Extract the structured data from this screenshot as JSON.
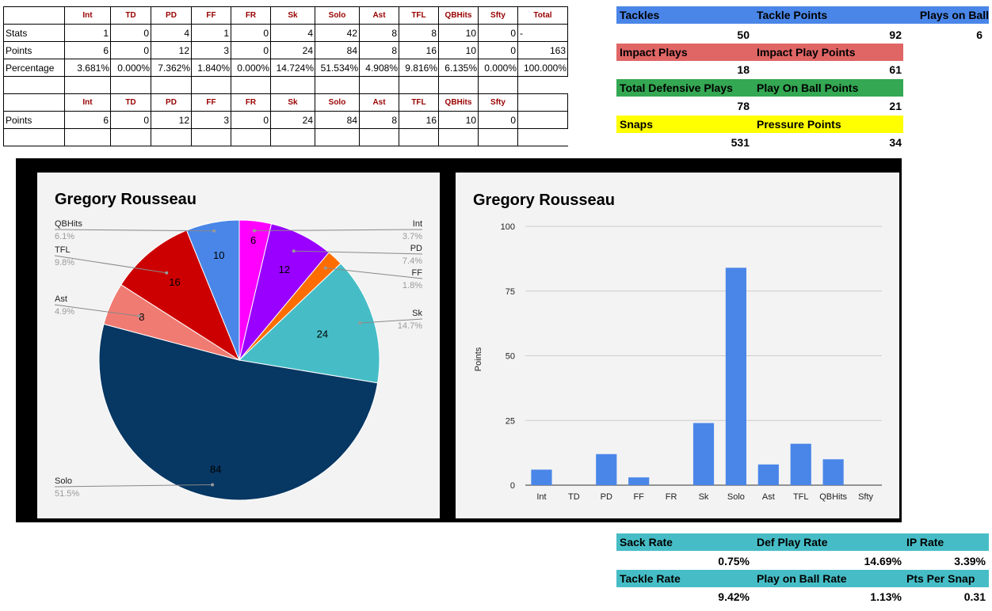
{
  "stats_table": {
    "headers": [
      "",
      "Int",
      "TD",
      "PD",
      "FF",
      "FR",
      "Sk",
      "Solo",
      "Ast",
      "TFL",
      "QBHits",
      "Sfty",
      "Total"
    ],
    "rows": [
      {
        "label": "Stats",
        "values": [
          "1",
          "0",
          "4",
          "1",
          "0",
          "4",
          "42",
          "8",
          "8",
          "10",
          "0",
          "-"
        ]
      },
      {
        "label": "Points",
        "values": [
          "6",
          "0",
          "12",
          "3",
          "0",
          "24",
          "84",
          "8",
          "16",
          "10",
          "0",
          "163"
        ]
      },
      {
        "label": "Percentage",
        "values": [
          "3.681%",
          "0.000%",
          "7.362%",
          "1.840%",
          "0.000%",
          "14.724%",
          "51.534%",
          "4.908%",
          "9.816%",
          "6.135%",
          "0.000%",
          "100.000%"
        ]
      }
    ],
    "headers2": [
      "",
      "Int",
      "TD",
      "PD",
      "FF",
      "FR",
      "Sk",
      "Solo",
      "Ast",
      "TFL",
      "QBHits",
      "Sfty",
      ""
    ],
    "rows2": [
      {
        "label": "Points",
        "values": [
          "6",
          "0",
          "12",
          "3",
          "0",
          "24",
          "84",
          "8",
          "16",
          "10",
          "0",
          ""
        ]
      }
    ]
  },
  "summary_top": {
    "colors": {
      "blue": "#4a86e8",
      "red": "#e06666",
      "green": "#34a853",
      "yellow": "#ffff00"
    },
    "tackles_label": "Tackles",
    "tackle_points_label": "Tackle Points",
    "plays_on_ball_label": "Plays on Ball",
    "tackles": "50",
    "tackle_points": "92",
    "plays_on_ball": "6",
    "impact_plays_label": "Impact Plays",
    "impact_play_points_label": "Impact Play Points",
    "impact_plays": "18",
    "impact_play_points": "61",
    "total_def_plays_label": "Total Defensive Plays",
    "play_on_ball_points_label": "Play On Ball Points",
    "total_def_plays": "78",
    "play_on_ball_points": "21",
    "snaps_label": "Snaps",
    "pressure_points_label": "Pressure Points",
    "snaps": "531",
    "pressure_points": "34"
  },
  "summary_bottom": {
    "color": "#46bdc6",
    "sack_rate_label": "Sack Rate",
    "def_play_rate_label": "Def Play Rate",
    "ip_rate_label": "IP Rate",
    "sack_rate": "0.75%",
    "def_play_rate": "14.69%",
    "ip_rate": "3.39%",
    "tackle_rate_label": "Tackle Rate",
    "play_on_ball_rate_label": "Play on Ball Rate",
    "pts_per_snap_label": "Pts Per Snap",
    "tackle_rate": "9.42%",
    "play_on_ball_rate": "1.13%",
    "pts_per_snap": "0.31"
  },
  "chart_data": [
    {
      "type": "pie",
      "title": "Gregory Rousseau",
      "slices": [
        {
          "name": "Int",
          "value": 6,
          "pct": "3.7%",
          "color": "#ff00ff"
        },
        {
          "name": "PD",
          "value": 12,
          "pct": "7.4%",
          "color": "#9900ff"
        },
        {
          "name": "FF",
          "value": 3,
          "pct": "1.8%",
          "color": "#ff6d01"
        },
        {
          "name": "Sk",
          "value": 24,
          "pct": "14.7%",
          "color": "#46bdc6"
        },
        {
          "name": "Solo",
          "value": 84,
          "pct": "51.5%",
          "color": "#073763"
        },
        {
          "name": "Ast",
          "value": 8,
          "pct": "4.9%",
          "color": "#f07b72"
        },
        {
          "name": "TFL",
          "value": 16,
          "pct": "9.8%",
          "color": "#cc0000"
        },
        {
          "name": "QBHits",
          "value": 10,
          "pct": "6.1%",
          "color": "#4a86e8"
        }
      ]
    },
    {
      "type": "bar",
      "title": "Gregory Rousseau",
      "categories": [
        "Int",
        "TD",
        "PD",
        "FF",
        "FR",
        "Sk",
        "Solo",
        "Ast",
        "TFL",
        "QBHits",
        "Sfty"
      ],
      "series": [
        {
          "values": [
            6,
            0,
            12,
            3,
            0,
            24,
            84,
            8,
            16,
            10,
            0
          ]
        }
      ],
      "ylabel": "Points",
      "yticks": [
        0,
        25,
        50,
        75,
        100
      ],
      "ylim": [
        0,
        100
      ],
      "bar_color": "#4a86e8",
      "grid": true
    }
  ]
}
